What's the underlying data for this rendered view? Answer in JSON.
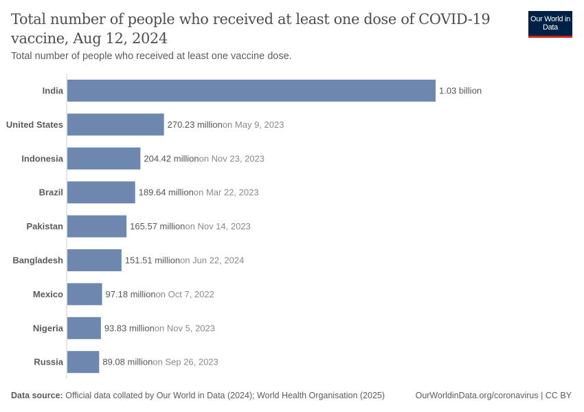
{
  "header": {
    "title": "Total number of people who received at least one dose of COVID-19 vaccine, Aug 12, 2024",
    "subtitle": "Total number of people who received at least one vaccine dose.",
    "logo": "Our World in Data"
  },
  "footer": {
    "source_label": "Data source:",
    "source_text": "Official data collated by Our World in Data (2024); World Health Organisation (2025)",
    "link": "OurWorldinData.org/coronavirus | CC BY"
  },
  "chart_data": {
    "type": "bar",
    "orientation": "horizontal",
    "bar_color": "#6d87ae",
    "categories": [
      "India",
      "United States",
      "Indonesia",
      "Brazil",
      "Pakistan",
      "Bangladesh",
      "Mexico",
      "Nigeria",
      "Russia"
    ],
    "values": [
      1030000000,
      270230000,
      204420000,
      189640000,
      165570000,
      151510000,
      97180000,
      93830000,
      89080000
    ],
    "value_labels": [
      "1.03 billion",
      "270.23 million",
      "204.42 million",
      "189.64 million",
      "165.57 million",
      "151.51 million",
      "97.18 million",
      "93.83 million",
      "89.08 million"
    ],
    "date_notes": [
      "",
      "on May 9, 2023",
      "on Nov 23, 2023",
      "on Mar 22, 2023",
      "on Nov 14, 2023",
      "on Jun 22, 2024",
      "on Oct 7, 2022",
      "on Nov 5, 2023",
      "on Sep 26, 2023"
    ]
  }
}
